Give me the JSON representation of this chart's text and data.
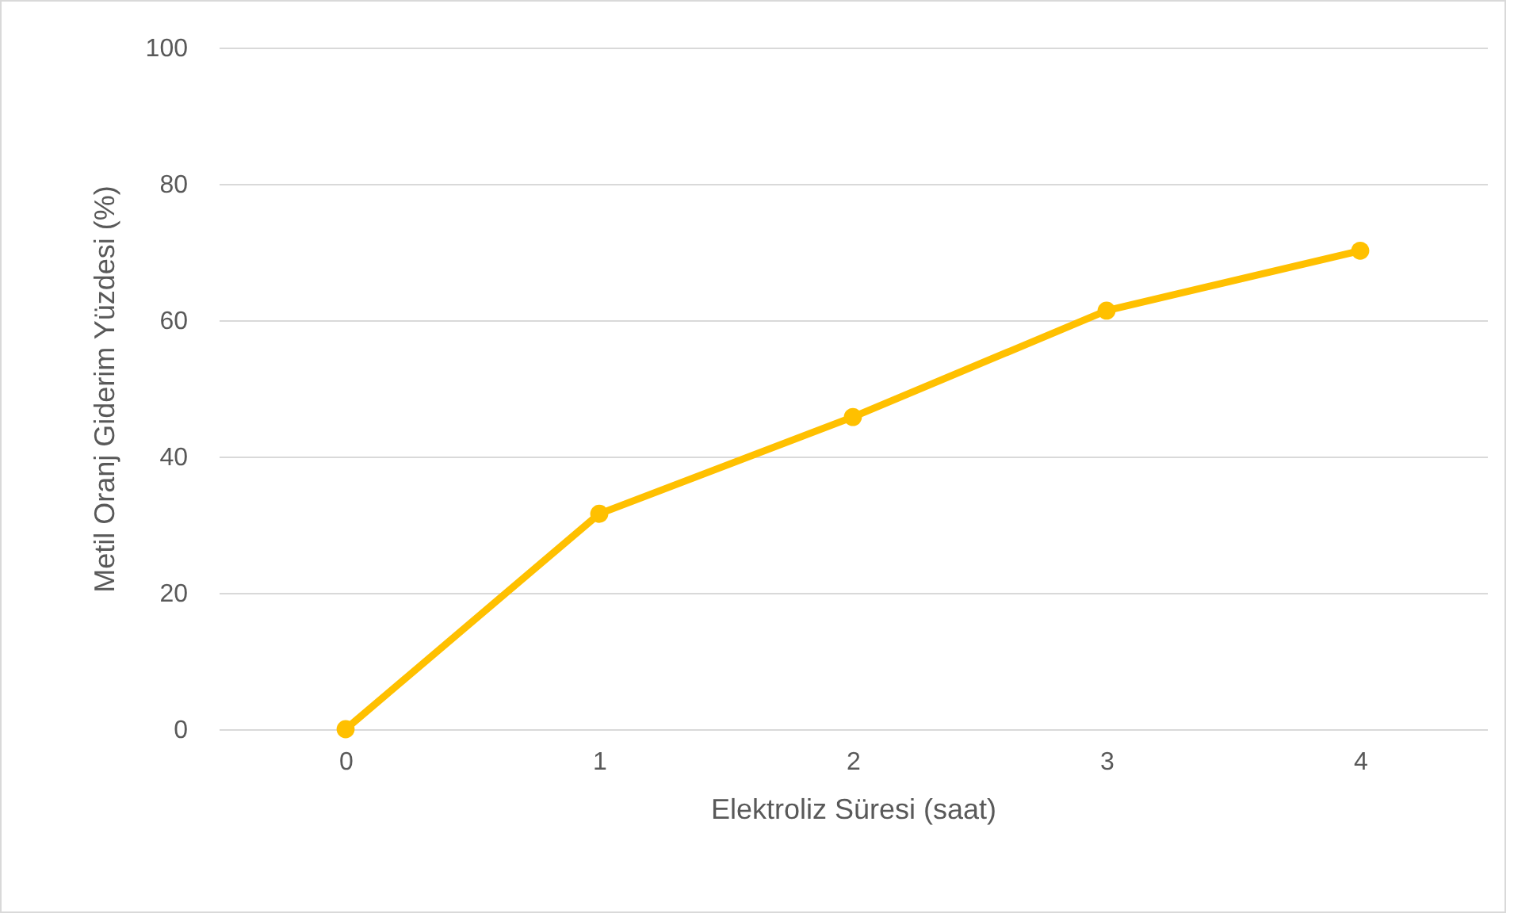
{
  "chart_data": {
    "type": "line",
    "xlabel": "Elektroliz Süresi (saat)",
    "ylabel": "Metil Oranj Giderim Yüzdesi (%)",
    "categories": [
      "0",
      "1",
      "2",
      "3",
      "4"
    ],
    "series": [
      {
        "color": "#ffc000",
        "values": [
          0,
          31.6,
          45.8,
          61.4,
          70.2
        ]
      }
    ],
    "ylim": [
      0,
      100
    ],
    "yticks": [
      0,
      20,
      40,
      60,
      80,
      100
    ],
    "grid": "y",
    "marker": "circle",
    "line_style": "solid"
  }
}
